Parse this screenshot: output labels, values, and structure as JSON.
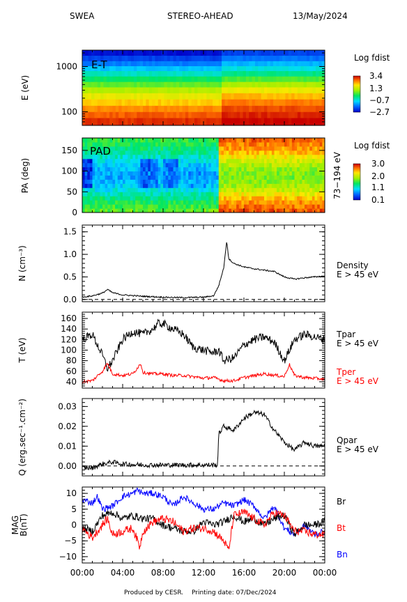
{
  "header": {
    "instrument": "SWEA",
    "spacecraft": "STEREO-AHEAD",
    "date": "13/May/2024"
  },
  "footer": {
    "produced_by": "Produced by CESR.",
    "printing_date": "Printing date: 07/Dec/2024"
  },
  "time_axis": {
    "ticks": [
      "00:00",
      "04:00",
      "08:00",
      "12:00",
      "16:00",
      "20:00",
      "00:00"
    ],
    "range_hours": [
      0,
      24
    ]
  },
  "chart_data": [
    {
      "id": "et",
      "type": "heatmap",
      "inner_label": "E-T",
      "ylabel": "E (eV)",
      "yscale": "log",
      "ylim": [
        50,
        2300
      ],
      "yticks": [
        {
          "value": 1000,
          "label": "1000"
        },
        {
          "value": 100,
          "label": "100"
        }
      ],
      "colorbar": {
        "title": "Log fdist",
        "range": [
          -2.7,
          3.4
        ],
        "ticks": [
          {
            "value": 3.4,
            "label": "3.4"
          },
          {
            "value": 1.3,
            "label": "1.3"
          },
          {
            "value": -0.7,
            "label": "−0.7"
          },
          {
            "value": -2.7,
            "label": "−2.7"
          }
        ]
      },
      "x_hours": [
        0,
        13.7,
        24
      ],
      "rows": [
        {
          "energy_ev": 2000,
          "before": 0.02,
          "after": 0.1
        },
        {
          "energy_ev": 1500,
          "before": 0.1,
          "after": 0.17
        },
        {
          "energy_ev": 1150,
          "before": 0.18,
          "after": 0.25
        },
        {
          "energy_ev": 900,
          "before": 0.27,
          "after": 0.33
        },
        {
          "energy_ev": 700,
          "before": 0.36,
          "after": 0.42
        },
        {
          "energy_ev": 520,
          "before": 0.45,
          "after": 0.52
        },
        {
          "energy_ev": 400,
          "before": 0.54,
          "after": 0.62
        },
        {
          "energy_ev": 300,
          "before": 0.63,
          "after": 0.72
        },
        {
          "energy_ev": 220,
          "before": 0.71,
          "after": 0.8
        },
        {
          "energy_ev": 160,
          "before": 0.78,
          "after": 0.87
        },
        {
          "energy_ev": 115,
          "before": 0.85,
          "after": 0.92
        },
        {
          "energy_ev": 85,
          "before": 0.9,
          "after": 0.96
        },
        {
          "energy_ev": 62,
          "before": 0.95,
          "after": 1.0
        }
      ]
    },
    {
      "id": "pad",
      "type": "heatmap",
      "inner_label": "PAD",
      "ylabel": "PA (deg)",
      "ylim": [
        0,
        180
      ],
      "yticks": [
        0,
        50,
        100,
        150
      ],
      "right_label": "73−194 eV",
      "colorbar": {
        "title": "Log fdist",
        "range": [
          0.1,
          3.0
        ],
        "ticks": [
          {
            "value": 3.0,
            "label": "3.0"
          },
          {
            "value": 2.0,
            "label": "2.0"
          },
          {
            "value": 1.1,
            "label": "1.1"
          },
          {
            "value": 0.1,
            "label": "0.1"
          }
        ]
      },
      "x_hours": [
        0,
        13.4,
        24
      ],
      "before_profile": [
        {
          "pa": 0,
          "level": 0.55
        },
        {
          "pa": 30,
          "level": 0.45
        },
        {
          "pa": 60,
          "level": 0.3
        },
        {
          "pa": 90,
          "level": 0.22
        },
        {
          "pa": 120,
          "level": 0.3
        },
        {
          "pa": 150,
          "level": 0.42
        },
        {
          "pa": 180,
          "level": 0.5
        }
      ],
      "after_profile": [
        {
          "pa": 0,
          "level": 0.92
        },
        {
          "pa": 30,
          "level": 0.82
        },
        {
          "pa": 60,
          "level": 0.62
        },
        {
          "pa": 90,
          "level": 0.55
        },
        {
          "pa": 120,
          "level": 0.64
        },
        {
          "pa": 150,
          "level": 0.82
        },
        {
          "pa": 180,
          "level": 0.9
        }
      ],
      "depleted_patches": [
        {
          "t0": 0.1,
          "t1": 1.0,
          "pa0": 60,
          "pa1": 130,
          "level": 0.02
        },
        {
          "t0": 5.8,
          "t1": 7.4,
          "pa0": 60,
          "pa1": 130,
          "level": 0.1
        },
        {
          "t0": 8.0,
          "t1": 9.6,
          "pa0": 60,
          "pa1": 130,
          "level": 0.12
        },
        {
          "t0": 10.5,
          "t1": 12.2,
          "pa0": 65,
          "pa1": 120,
          "level": 0.18
        }
      ]
    },
    {
      "id": "density",
      "type": "line",
      "ylabel": "N (cm⁻³)",
      "ylim": [
        -0.05,
        1.65
      ],
      "yticks": [
        {
          "value": 0.0,
          "label": "0.0"
        },
        {
          "value": 0.5,
          "label": "0.5"
        },
        {
          "value": 1.0,
          "label": "1.0"
        },
        {
          "value": 1.5,
          "label": "1.5"
        }
      ],
      "zero_line": 0,
      "legend": [
        {
          "text": "Density",
          "color": "#000000"
        },
        {
          "text": "E > 45 eV",
          "color": "#000000"
        }
      ],
      "series": [
        {
          "color": "#000000",
          "noise": 0.015,
          "x": [
            0,
            1,
            2,
            2.5,
            3,
            4,
            6,
            8,
            10,
            12,
            13,
            13.5,
            14,
            14.3,
            14.5,
            15,
            16,
            17,
            18,
            19,
            20,
            21,
            22,
            23,
            24
          ],
          "y": [
            0.05,
            0.08,
            0.14,
            0.22,
            0.15,
            0.1,
            0.07,
            0.05,
            0.04,
            0.05,
            0.08,
            0.3,
            0.7,
            1.3,
            0.9,
            0.8,
            0.72,
            0.68,
            0.65,
            0.62,
            0.5,
            0.45,
            0.48,
            0.5,
            0.52
          ]
        }
      ]
    },
    {
      "id": "temperature",
      "type": "line",
      "ylabel": "T (eV)",
      "ylim": [
        28,
        172
      ],
      "yticks": [
        {
          "value": 40,
          "label": "40"
        },
        {
          "value": 60,
          "label": "60"
        },
        {
          "value": 80,
          "label": "80"
        },
        {
          "value": 100,
          "label": "100"
        },
        {
          "value": 120,
          "label": "120"
        },
        {
          "value": 140,
          "label": "140"
        },
        {
          "value": 160,
          "label": "160"
        }
      ],
      "legend": [
        {
          "text": "Tpar",
          "color": "#000000"
        },
        {
          "text": "E > 45 eV",
          "color": "#000000"
        },
        {
          "text": "Tper",
          "color": "#ff0000"
        },
        {
          "text": "E > 45 eV",
          "color": "#ff0000"
        }
      ],
      "series": [
        {
          "name": "Tpar",
          "color": "#000000",
          "noise": 8,
          "x": [
            0,
            0.5,
            1,
            1.5,
            2,
            2.5,
            3,
            4,
            5,
            6,
            7,
            7.5,
            8,
            9,
            10,
            11,
            12,
            13,
            13.5,
            14,
            15,
            16,
            17,
            18,
            19,
            20,
            21,
            22,
            23,
            24
          ],
          "y": [
            120,
            125,
            130,
            110,
            90,
            65,
            80,
            120,
            135,
            130,
            140,
            150,
            150,
            140,
            130,
            105,
            100,
            95,
            100,
            80,
            85,
            110,
            120,
            125,
            115,
            80,
            120,
            130,
            125,
            120
          ]
        },
        {
          "name": "Tper",
          "color": "#ff0000",
          "noise": 3,
          "x": [
            0,
            1,
            2,
            2.5,
            3,
            4,
            5,
            5.8,
            6,
            7,
            8,
            9,
            10,
            12,
            13,
            14,
            15,
            16,
            18,
            20,
            20.5,
            21,
            22,
            24
          ],
          "y": [
            40,
            42,
            60,
            75,
            55,
            52,
            55,
            75,
            58,
            55,
            55,
            52,
            52,
            47,
            48,
            42,
            42,
            48,
            55,
            50,
            73,
            52,
            48,
            45
          ]
        }
      ]
    },
    {
      "id": "heat_flux",
      "type": "line",
      "ylabel": "Q (erg.sec⁻¹.cm⁻²)",
      "ylim": [
        -0.005,
        0.034
      ],
      "yticks": [
        {
          "value": 0.0,
          "label": "0.00"
        },
        {
          "value": 0.01,
          "label": "0.01"
        },
        {
          "value": 0.02,
          "label": "0.02"
        },
        {
          "value": 0.03,
          "label": "0.03"
        }
      ],
      "zero_line": 0,
      "legend": [
        {
          "text": "Qpar",
          "color": "#000000"
        },
        {
          "text": "E > 45 eV",
          "color": "#000000"
        }
      ],
      "series": [
        {
          "color": "#000000",
          "noise": 0.0012,
          "x": [
            0,
            1,
            2,
            3,
            4,
            6,
            8,
            10,
            12,
            13.4,
            13.5,
            14,
            15,
            16,
            17,
            18,
            19,
            20,
            21,
            22,
            23,
            24
          ],
          "y": [
            -0.001,
            -0.001,
            0.001,
            0.002,
            0.001,
            0.0005,
            0.0005,
            0.0005,
            0.0005,
            0.0005,
            0.016,
            0.02,
            0.018,
            0.024,
            0.027,
            0.026,
            0.018,
            0.012,
            0.008,
            0.012,
            0.01,
            0.01
          ]
        }
      ]
    },
    {
      "id": "mag",
      "type": "line",
      "ylabel": "MAG B(nT)",
      "ylim": [
        -12,
        12
      ],
      "yticks": [
        {
          "value": -10,
          "label": "−10"
        },
        {
          "value": -5,
          "label": "−5"
        },
        {
          "value": 0,
          "label": "0"
        },
        {
          "value": 5,
          "label": "5"
        },
        {
          "value": 10,
          "label": "10"
        }
      ],
      "legend": [
        {
          "text": "Br",
          "color": "#000000"
        },
        {
          "text": "Bt",
          "color": "#ff0000"
        },
        {
          "text": "Bn",
          "color": "#0000ff"
        }
      ],
      "series": [
        {
          "name": "Bn",
          "color": "#0000ff",
          "noise": 1.0,
          "x": [
            0,
            1,
            1.5,
            2,
            3,
            4,
            5,
            5.5,
            6,
            7,
            8,
            9,
            10,
            11,
            12,
            13,
            14,
            15,
            16,
            17,
            18,
            19,
            20,
            21,
            22,
            23,
            24
          ],
          "y": [
            8,
            7,
            9,
            5,
            6,
            9,
            10,
            11,
            10,
            10,
            9,
            6,
            9,
            7,
            5,
            5,
            7,
            6,
            8,
            6,
            2,
            6,
            -1,
            -3,
            0,
            -3,
            -2
          ]
        },
        {
          "name": "Br",
          "color": "#000000",
          "noise": 1.2,
          "x": [
            0,
            1,
            2,
            3,
            4,
            5,
            6,
            7,
            8,
            9,
            10,
            11,
            12,
            13,
            14,
            15,
            16,
            17,
            18,
            19,
            20,
            21,
            22,
            23,
            24
          ],
          "y": [
            -1,
            -2,
            3,
            4,
            2,
            3,
            2,
            2,
            0,
            -1,
            -2,
            -2,
            1,
            0,
            1,
            3,
            1,
            2,
            0,
            2,
            3,
            -3,
            0,
            0,
            1
          ]
        },
        {
          "name": "Bt",
          "color": "#ff0000",
          "noise": 1.3,
          "x": [
            0,
            1,
            2,
            2.5,
            3,
            4,
            5,
            5.7,
            6,
            7,
            8,
            9,
            10,
            11,
            12,
            13,
            14,
            14.5,
            15,
            16,
            17,
            18,
            19,
            20,
            21,
            22,
            23,
            24
          ],
          "y": [
            -1,
            -4,
            0,
            2,
            -3,
            -2,
            -1,
            -7,
            -2,
            1,
            2,
            1,
            -2,
            -1,
            -1,
            -2,
            -5,
            -8,
            3,
            4,
            2,
            0,
            4,
            3,
            -2,
            -2,
            -3,
            -3
          ]
        }
      ]
    }
  ]
}
